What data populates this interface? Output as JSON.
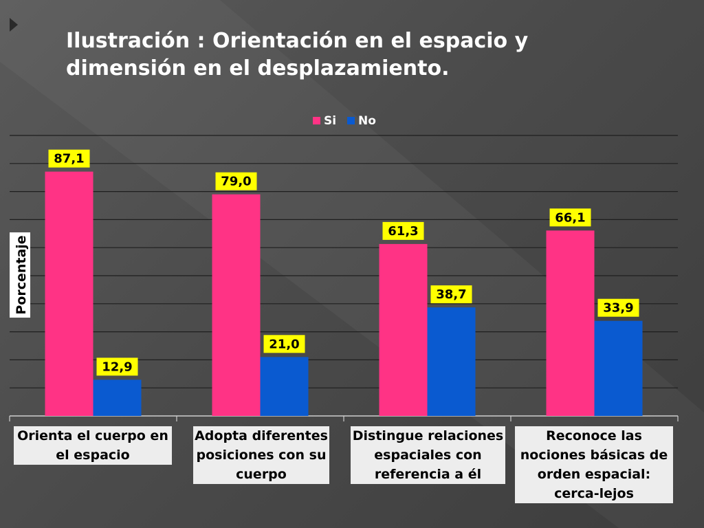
{
  "title": "Ilustración : Orientación en el espacio y dimensión en el desplazamiento.",
  "chart_data": {
    "type": "bar",
    "categories": [
      "Orienta el cuerpo en el espacio",
      "Adopta diferentes posiciones con su cuerpo",
      "Distingue relaciones espaciales con referencia a él",
      "Reconoce las nociones básicas de orden espacial: cerca-lejos"
    ],
    "series": [
      {
        "name": "Si",
        "values": [
          87.1,
          79.0,
          61.3,
          66.1
        ],
        "labels": [
          "87,1",
          "79,0",
          "61,3",
          "66,1"
        ],
        "color": "#ff3385"
      },
      {
        "name": "No",
        "values": [
          12.9,
          21.0,
          38.7,
          33.9
        ],
        "labels": [
          "12,9",
          "21,0",
          "38,7",
          "33,9"
        ],
        "color": "#0a5ad0"
      }
    ],
    "ylabel": "Porcentaje",
    "xlabel": "",
    "ylim": [
      0,
      100
    ],
    "grid": true,
    "legend": "top-center",
    "data_label_bg": "#ffff00"
  }
}
